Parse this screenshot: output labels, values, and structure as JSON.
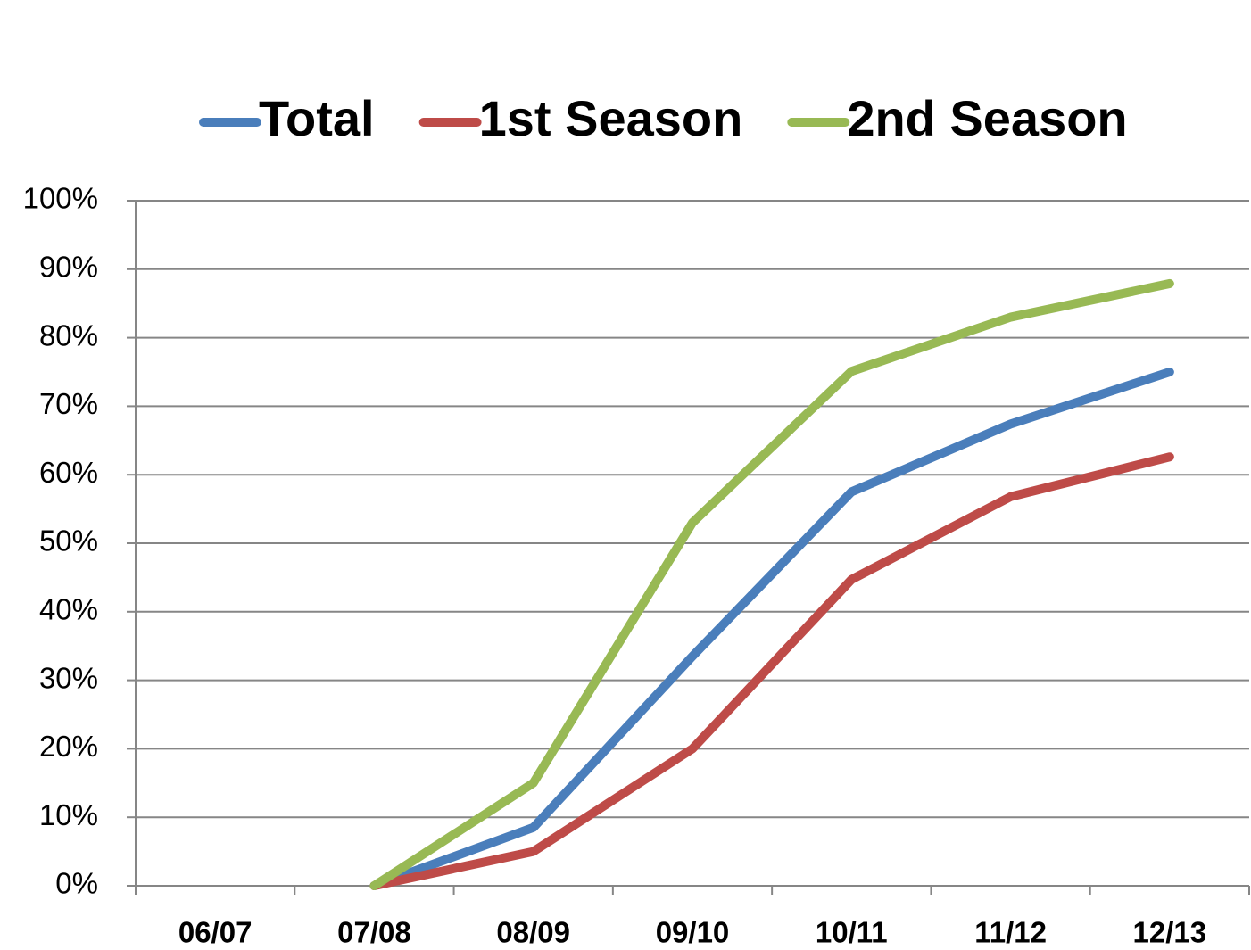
{
  "chart_data": {
    "type": "line",
    "categories": [
      "06/07",
      "07/08",
      "08/09",
      "09/10",
      "10/11",
      "11/12",
      "12/13"
    ],
    "series": [
      {
        "name": "Total",
        "color": "#4a7ebb",
        "values": [
          null,
          0,
          8.5,
          33.5,
          57.5,
          67.4,
          75
        ]
      },
      {
        "name": "1st Season",
        "color": "#be4b48",
        "values": [
          null,
          0,
          5,
          20,
          44.7,
          56.8,
          62.6
        ]
      },
      {
        "name": "2nd Season",
        "color": "#98b954",
        "values": [
          null,
          0,
          15,
          53,
          75.1,
          83,
          87.9
        ]
      }
    ],
    "ylim": [
      0,
      100
    ],
    "yticks": [
      {
        "value": 0,
        "label": "0%"
      },
      {
        "value": 10,
        "label": "10%"
      },
      {
        "value": 20,
        "label": "20%"
      },
      {
        "value": 30,
        "label": "30%"
      },
      {
        "value": 40,
        "label": "40%"
      },
      {
        "value": 50,
        "label": "50%"
      },
      {
        "value": 60,
        "label": "60%"
      },
      {
        "value": 70,
        "label": "70%"
      },
      {
        "value": 80,
        "label": "80%"
      },
      {
        "value": 90,
        "label": "90%"
      },
      {
        "value": 100,
        "label": "100%"
      }
    ],
    "grid": true,
    "legend": "top"
  }
}
